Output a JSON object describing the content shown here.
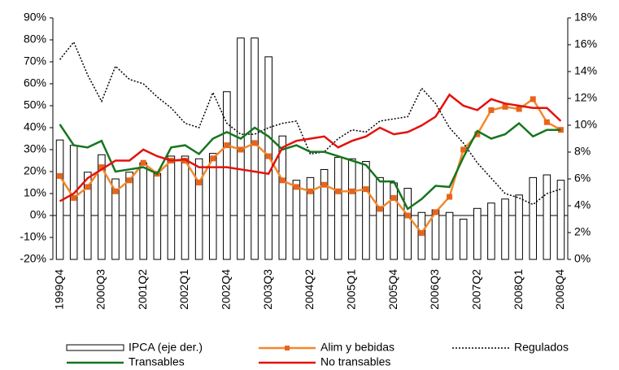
{
  "chart_data": {
    "type": "bar-line",
    "categories": [
      "1999Q4",
      null,
      null,
      "2000Q3",
      null,
      null,
      "2001Q2",
      null,
      null,
      "2002Q1",
      null,
      null,
      "2002Q4",
      null,
      null,
      "2003Q3",
      null,
      null,
      "2004Q2",
      null,
      null,
      "2005Q1",
      null,
      null,
      "2005Q4",
      null,
      null,
      "2006Q3",
      null,
      null,
      "2007Q2",
      null,
      null,
      "2008Q1",
      null,
      null,
      "2008Q4"
    ],
    "ylim": [
      -20,
      90
    ],
    "yticks": [
      {
        "value": -20,
        "label": "-20%"
      },
      {
        "value": -10,
        "label": "-10%"
      },
      {
        "value": 0,
        "label": "0%"
      },
      {
        "value": 10,
        "label": "10%"
      },
      {
        "value": 20,
        "label": "20%"
      },
      {
        "value": 30,
        "label": "30%"
      },
      {
        "value": 40,
        "label": "40%"
      },
      {
        "value": 50,
        "label": "50%"
      },
      {
        "value": 60,
        "label": "60%"
      },
      {
        "value": 70,
        "label": "70%"
      },
      {
        "value": 80,
        "label": "80%"
      },
      {
        "value": 90,
        "label": "90%"
      }
    ],
    "y2lim": [
      0,
      18
    ],
    "y2ticks": [
      {
        "value": 0,
        "label": "0%"
      },
      {
        "value": 2,
        "label": "2%"
      },
      {
        "value": 4,
        "label": "4%"
      },
      {
        "value": 6,
        "label": "6%"
      },
      {
        "value": 8,
        "label": "8%"
      },
      {
        "value": 10,
        "label": "10%"
      },
      {
        "value": 12,
        "label": "12%"
      },
      {
        "value": 14,
        "label": "14%"
      },
      {
        "value": 16,
        "label": "16%"
      },
      {
        "value": 18,
        "label": "18%"
      }
    ],
    "series": [
      {
        "name": "IPCA (eje der.)",
        "kind": "bar",
        "axis": "y2",
        "color": "#ffffff",
        "values": [
          8.9,
          8.5,
          6.5,
          7.8,
          6.0,
          6.5,
          7.2,
          6.4,
          7.7,
          7.7,
          7.5,
          7.9,
          12.5,
          16.5,
          16.5,
          15.1,
          9.2,
          5.9,
          6.1,
          6.7,
          7.6,
          7.5,
          7.3,
          6.1,
          5.7,
          5.3,
          3.5,
          3.7,
          3.5,
          3.0,
          3.8,
          4.2,
          4.5,
          4.8,
          6.1,
          6.3,
          5.9
        ]
      },
      {
        "name": "Alim y bebidas",
        "kind": "line",
        "color": "#f4882a",
        "values": [
          18,
          8,
          13,
          22,
          11,
          16,
          24,
          19,
          25,
          25,
          15,
          26,
          32,
          30,
          33,
          27,
          16,
          13,
          11,
          14,
          11,
          11,
          12,
          3,
          8,
          0,
          -8,
          1.5,
          8.5,
          30,
          37,
          48,
          49.5,
          48.5,
          53,
          42.5,
          39
        ]
      },
      {
        "name": "Regulados",
        "kind": "line",
        "color": "#000000",
        "values": [
          71,
          79,
          64,
          52,
          68,
          62,
          60,
          54,
          49,
          42,
          40,
          56,
          42,
          37,
          37,
          40,
          42,
          43,
          28,
          29,
          35,
          39,
          38,
          43,
          44,
          45,
          58,
          51,
          40,
          33,
          24,
          17,
          10,
          8,
          5,
          10,
          12
        ]
      },
      {
        "name": "Transables",
        "kind": "line",
        "color": "#17751f",
        "values": [
          41.5,
          32,
          31,
          34,
          20,
          21,
          22,
          19,
          31,
          32,
          28,
          35,
          38,
          35,
          40,
          36,
          30,
          32,
          29,
          29,
          27,
          25,
          23,
          15.5,
          15.5,
          3,
          7.5,
          13.5,
          13,
          26.5,
          38.5,
          35,
          37,
          42,
          36,
          39,
          39
        ]
      },
      {
        "name": "No transables",
        "kind": "line",
        "color": "#e3120b",
        "values": [
          6.5,
          10,
          17,
          21,
          25,
          25,
          30,
          27,
          25,
          25.5,
          22,
          22,
          22,
          21,
          20,
          19,
          31,
          34,
          35,
          36,
          31,
          34,
          36,
          40,
          37,
          38,
          41,
          45,
          55,
          50,
          48,
          53,
          51,
          50,
          49,
          49,
          43
        ]
      }
    ]
  }
}
